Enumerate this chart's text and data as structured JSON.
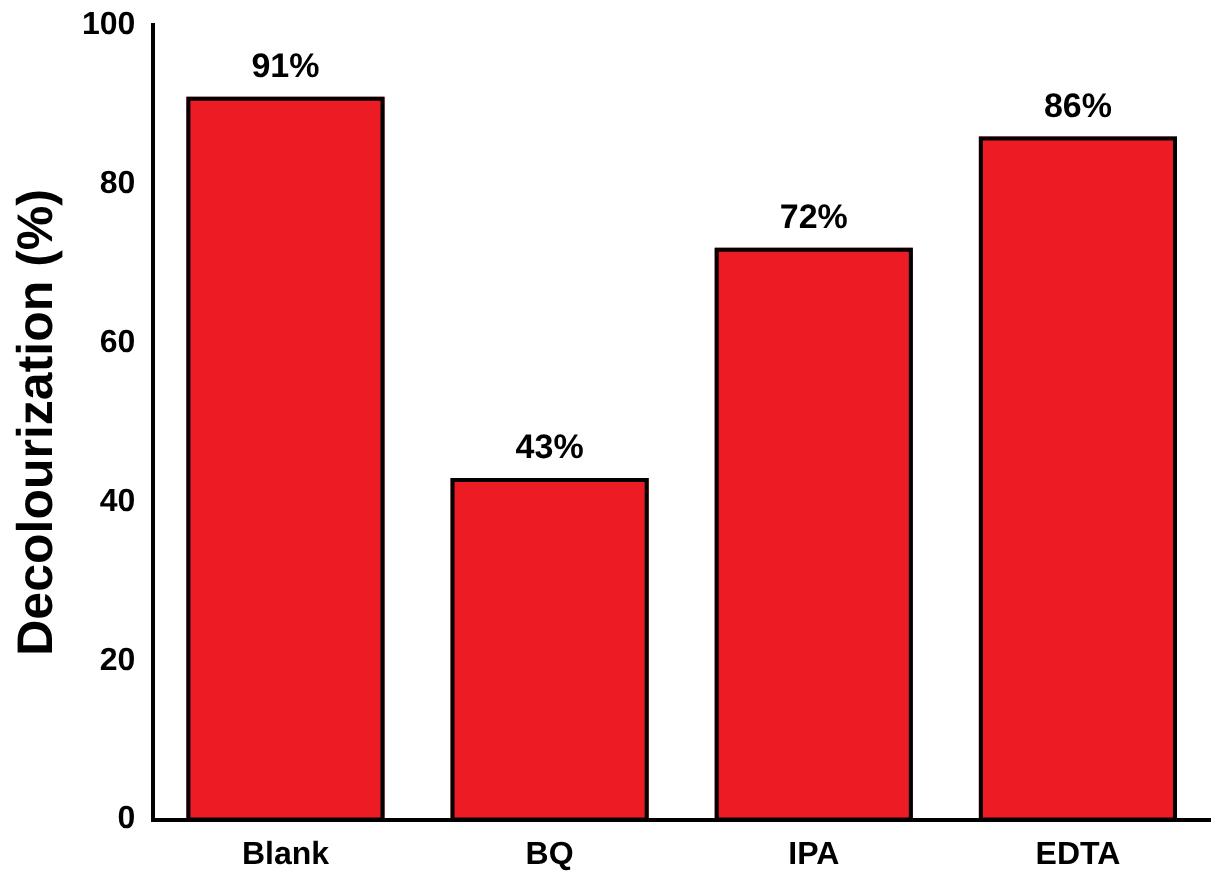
{
  "chart_data": {
    "type": "bar",
    "ylabel": "Decolourization (%)",
    "categories": [
      "Blank",
      "BQ",
      "IPA",
      "EDTA"
    ],
    "values": [
      91,
      43,
      72,
      86
    ],
    "color": "#ed1c24",
    "value_labels": [
      "91%",
      "43%",
      "72%",
      "86%"
    ],
    "ylim": [
      0,
      100
    ],
    "yticks": [
      0,
      20,
      40,
      60,
      80,
      100
    ],
    "grid": false,
    "legend": false
  }
}
